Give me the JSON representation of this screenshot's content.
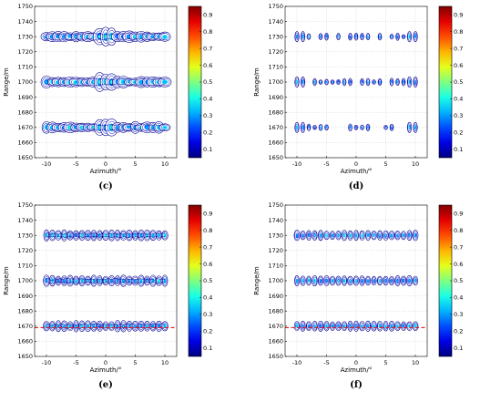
{
  "chart_data": [
    {
      "type": "contour",
      "label": "(c)",
      "xlabel": "Azimuth/°",
      "ylabel": "Range/m",
      "xlim": [
        -12,
        12
      ],
      "ylim": [
        1650,
        1750
      ],
      "xticks": [
        -10,
        -5,
        0,
        5,
        10
      ],
      "yticks": [
        1650,
        1660,
        1670,
        1680,
        1690,
        1700,
        1710,
        1720,
        1730,
        1740,
        1750
      ],
      "rows_range_m": [
        1670,
        1700,
        1730
      ],
      "azimuth_range_deg": [
        -10,
        10
      ],
      "pattern": "merged",
      "reference_line": null,
      "colorbar": {
        "min": 0.05,
        "max": 0.95,
        "ticks": [
          0.1,
          0.2,
          0.3,
          0.4,
          0.5,
          0.6,
          0.7,
          0.8,
          0.9
        ]
      }
    },
    {
      "type": "contour",
      "label": "(d)",
      "xlabel": "Azimuth/°",
      "ylabel": "Range/m",
      "xlim": [
        -12,
        12
      ],
      "ylim": [
        1650,
        1750
      ],
      "xticks": [
        -10,
        -5,
        0,
        5,
        10
      ],
      "yticks": [
        1650,
        1660,
        1670,
        1680,
        1690,
        1700,
        1710,
        1720,
        1730,
        1740,
        1750
      ],
      "rows_range_m": [
        1670,
        1700,
        1730
      ],
      "azimuth_range_deg": [
        -10,
        10
      ],
      "pattern": "sparse",
      "reference_line": null,
      "colorbar": {
        "min": 0.05,
        "max": 0.95,
        "ticks": [
          0.1,
          0.2,
          0.3,
          0.4,
          0.5,
          0.6,
          0.7,
          0.8,
          0.9
        ]
      }
    },
    {
      "type": "contour",
      "label": "(e)",
      "xlabel": "Azimuth/°",
      "ylabel": "Range/m",
      "xlim": [
        -12,
        12
      ],
      "ylim": [
        1650,
        1750
      ],
      "xticks": [
        -10,
        -5,
        0,
        5,
        10
      ],
      "yticks": [
        1650,
        1660,
        1670,
        1680,
        1690,
        1700,
        1710,
        1720,
        1730,
        1740,
        1750
      ],
      "rows_range_m": [
        1670,
        1700,
        1730
      ],
      "azimuth_range_deg": [
        -10,
        10
      ],
      "pattern": "separated",
      "reference_line": 1669,
      "colorbar": {
        "min": 0.05,
        "max": 0.95,
        "ticks": [
          0.1,
          0.2,
          0.3,
          0.4,
          0.5,
          0.6,
          0.7,
          0.8,
          0.9
        ]
      }
    },
    {
      "type": "contour",
      "label": "(f)",
      "xlabel": "Azimuth/°",
      "ylabel": "Range/m",
      "xlim": [
        -12,
        12
      ],
      "ylim": [
        1650,
        1750
      ],
      "xticks": [
        -10,
        -5,
        0,
        5,
        10
      ],
      "yticks": [
        1650,
        1660,
        1670,
        1680,
        1690,
        1700,
        1710,
        1720,
        1730,
        1740,
        1750
      ],
      "rows_range_m": [
        1670,
        1700,
        1730
      ],
      "azimuth_range_deg": [
        -10,
        10
      ],
      "pattern": "separated-clean",
      "reference_line": 1669,
      "colorbar": {
        "min": 0.05,
        "max": 0.95,
        "ticks": [
          0.1,
          0.2,
          0.3,
          0.4,
          0.5,
          0.6,
          0.7,
          0.8,
          0.9
        ]
      }
    }
  ],
  "colors": {
    "contour_outer": "#00008b",
    "reference_line": "#e41a1c"
  }
}
